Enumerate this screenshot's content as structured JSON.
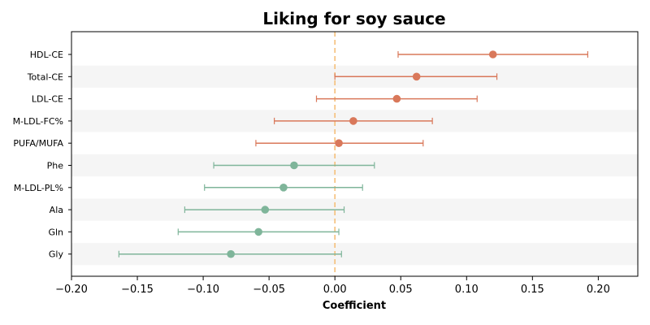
{
  "chart_data": {
    "type": "forest",
    "title": "Liking for soy sauce",
    "xlabel": "Coefficient",
    "ylabel": "",
    "xlim": [
      -0.2,
      0.23
    ],
    "xticks": [
      -0.2,
      -0.15,
      -0.1,
      -0.05,
      0.0,
      0.05,
      0.1,
      0.15,
      0.2
    ],
    "xtick_labels": [
      "−0.20",
      "−0.15",
      "−0.10",
      "−0.05",
      "0.00",
      "0.05",
      "0.10",
      "0.15",
      "0.20"
    ],
    "reference_line": 0.0,
    "grid": false,
    "row_shading": "alternating",
    "colors": {
      "positive": "#d9785a",
      "negative": "#7fb59a",
      "reference_line": "#f5c07a",
      "row_band": "#f5f5f5"
    },
    "items": [
      {
        "label": "HDL-CE",
        "estimate": 0.12,
        "ci_low": 0.048,
        "ci_high": 0.192
      },
      {
        "label": "Total-CE",
        "estimate": 0.062,
        "ci_low": 0.0,
        "ci_high": 0.123
      },
      {
        "label": "LDL-CE",
        "estimate": 0.047,
        "ci_low": -0.014,
        "ci_high": 0.108
      },
      {
        "label": "M-LDL-FC%",
        "estimate": 0.014,
        "ci_low": -0.046,
        "ci_high": 0.074
      },
      {
        "label": "PUFA/MUFA",
        "estimate": 0.003,
        "ci_low": -0.06,
        "ci_high": 0.067
      },
      {
        "label": "Phe",
        "estimate": -0.031,
        "ci_low": -0.092,
        "ci_high": 0.03
      },
      {
        "label": "M-LDL-PL%",
        "estimate": -0.039,
        "ci_low": -0.099,
        "ci_high": 0.021
      },
      {
        "label": "Ala",
        "estimate": -0.053,
        "ci_low": -0.114,
        "ci_high": 0.007
      },
      {
        "label": "Gln",
        "estimate": -0.058,
        "ci_low": -0.119,
        "ci_high": 0.003
      },
      {
        "label": "Gly",
        "estimate": -0.079,
        "ci_low": -0.164,
        "ci_high": 0.005
      }
    ]
  }
}
